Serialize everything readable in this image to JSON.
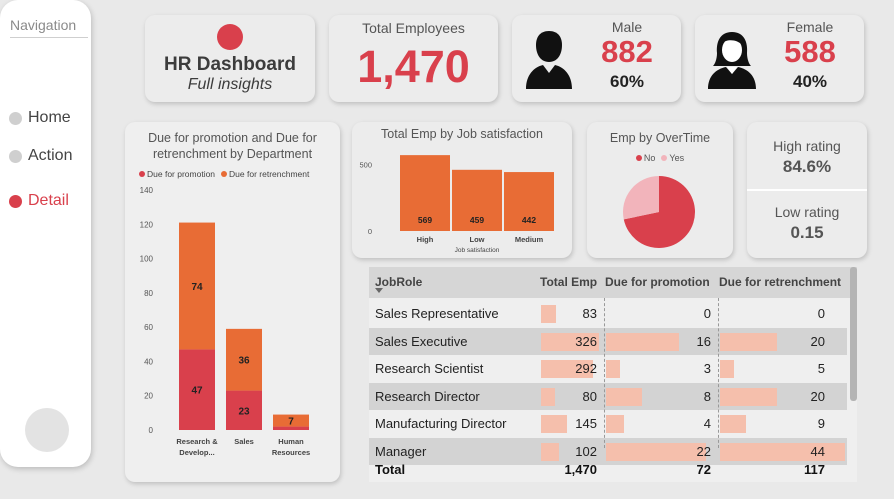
{
  "navigation": {
    "title": "Navigation",
    "items": [
      {
        "label": "Home",
        "active": false
      },
      {
        "label": "Action",
        "active": false
      },
      {
        "label": "Detail",
        "active": true
      }
    ]
  },
  "header": {
    "title": "HR Dashboard",
    "subtitle": "Full insights"
  },
  "total_employees": {
    "label": "Total Employees",
    "value": "1,470"
  },
  "male": {
    "label": "Male",
    "value": "882",
    "percent": "60%"
  },
  "female": {
    "label": "Female",
    "value": "588",
    "percent": "40%"
  },
  "rating": {
    "high_label": "High rating",
    "high_value": "84.6%",
    "low_label": "Low rating",
    "low_value": "0.15"
  },
  "colors": {
    "accent": "#d9404c",
    "secondary": "#e86c35",
    "light_bar": "#f5bfac",
    "pie_yes": "#f2b4bb"
  },
  "chart_data": [
    {
      "type": "bar",
      "stacked": true,
      "title": "Due for promotion and Due for retrenchment by Department",
      "categories": [
        "Research & Develop...",
        "Sales",
        "Human Resources"
      ],
      "series": [
        {
          "name": "Due for promotion",
          "values": [
            47,
            23,
            2
          ],
          "color": "#d9404c"
        },
        {
          "name": "Due for retrenchment",
          "values": [
            74,
            36,
            7
          ],
          "color": "#e86c35"
        }
      ],
      "data_labels": [
        [
          "47",
          "23",
          ""
        ],
        [
          "74",
          "36",
          "7"
        ]
      ],
      "ylim": [
        0,
        140
      ],
      "yticks": [
        0,
        20,
        40,
        60,
        80,
        100,
        120,
        140
      ],
      "legend": "top-left",
      "grid": false
    },
    {
      "type": "bar",
      "title": "Total Emp by Job satisfaction",
      "categories": [
        "High",
        "Low",
        "Medium"
      ],
      "values": [
        569,
        459,
        442
      ],
      "xlabel": "Job satisfaction",
      "ylim": [
        0,
        600
      ],
      "yticks": [
        0,
        500
      ],
      "color": "#e86c35"
    },
    {
      "type": "pie",
      "title": "Emp by OverTime",
      "labels": [
        "No",
        "Yes"
      ],
      "values": [
        1054,
        416
      ],
      "colors": [
        "#d9404c",
        "#f2b4bb"
      ],
      "legend": "top"
    }
  ],
  "table": {
    "columns": [
      "JobRole",
      "Total Emp",
      "Due for promotion",
      "Due for retrenchment"
    ],
    "rows": [
      {
        "role": "Sales Representative",
        "total": 83,
        "promotion": 0,
        "retrenchment": 0
      },
      {
        "role": "Sales Executive",
        "total": 326,
        "promotion": 16,
        "retrenchment": 20
      },
      {
        "role": "Research Scientist",
        "total": 292,
        "promotion": 3,
        "retrenchment": 5
      },
      {
        "role": "Research Director",
        "total": 80,
        "promotion": 8,
        "retrenchment": 20
      },
      {
        "role": "Manufacturing Director",
        "total": 145,
        "promotion": 4,
        "retrenchment": 9
      },
      {
        "role": "Manager",
        "total": 102,
        "promotion": 22,
        "retrenchment": 44
      }
    ],
    "total_label": "Total",
    "totals": {
      "total": "1,470",
      "promotion": "72",
      "retrenchment": "117"
    }
  }
}
